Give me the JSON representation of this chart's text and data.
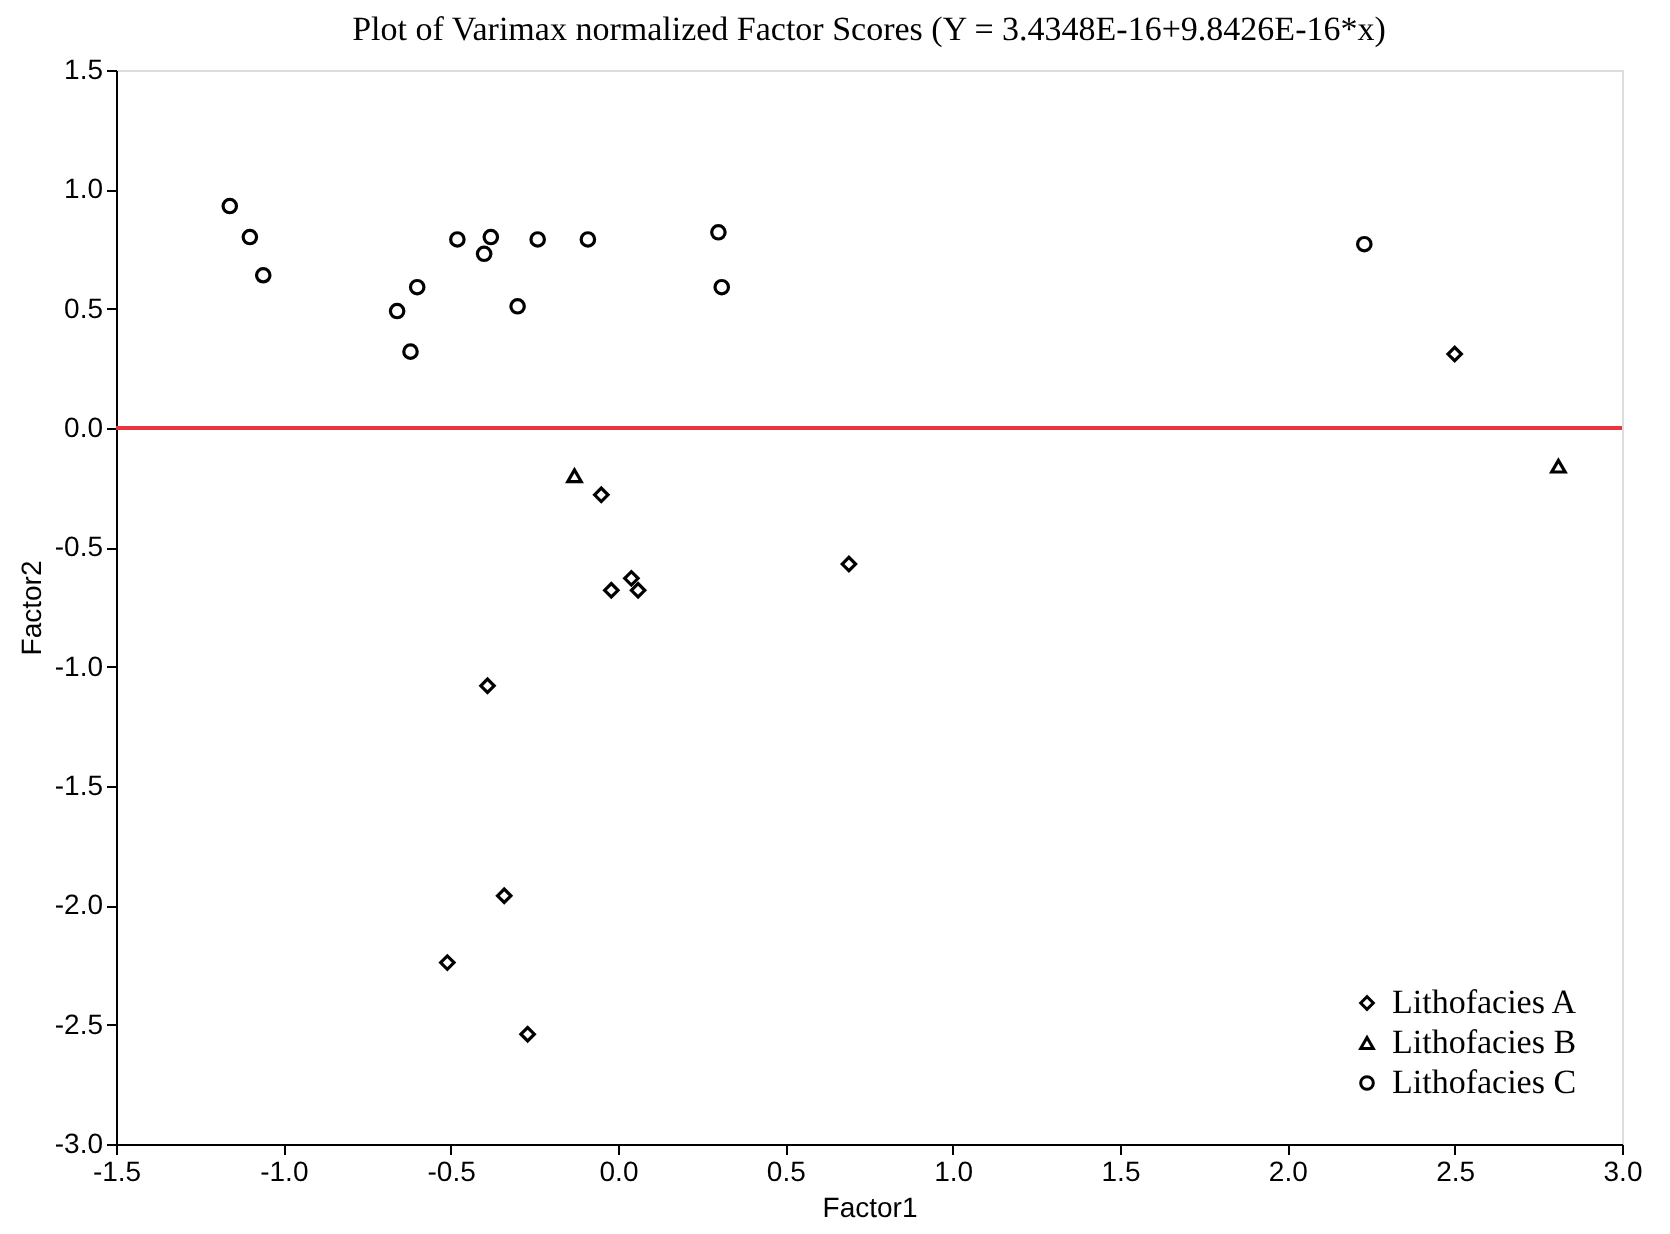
{
  "chart_data": {
    "type": "scatter",
    "title": "Plot of Varimax normalized Factor Scores (Y = 3.4348E-16+9.8426E-16*x)",
    "xlabel": "Factor1",
    "ylabel": "Factor2",
    "series": [
      {
        "name": "Lithofacies A",
        "color": "#000000",
        "marker": "diamond",
        "x": [
          -0.05,
          -0.02,
          0.04,
          0.06,
          0.69,
          2.5,
          -0.39,
          -0.34,
          -0.51,
          -0.27
        ],
        "values": [
          -0.28,
          -0.68,
          -0.63,
          -0.68,
          -0.57,
          0.31,
          -1.08,
          -1.96,
          -2.24,
          -2.54
        ]
      },
      {
        "name": "Lithofacies B",
        "color": "#000000",
        "marker": "triangle",
        "x": [
          -0.13,
          2.81
        ],
        "values": [
          -0.2,
          -0.16
        ]
      },
      {
        "name": "Lithofacies C",
        "color": "#000000",
        "marker": "circle",
        "x": [
          -1.16,
          -1.1,
          -1.06,
          -0.66,
          -0.62,
          -0.6,
          -0.48,
          -0.4,
          -0.38,
          -0.3,
          -0.24,
          -0.09,
          0.3,
          0.31,
          2.23
        ],
        "values": [
          0.93,
          0.8,
          0.64,
          0.49,
          0.32,
          0.59,
          0.79,
          0.73,
          0.8,
          0.51,
          0.79,
          0.79,
          0.82,
          0.59,
          0.77
        ]
      }
    ],
    "xlim": [
      -1.5,
      3.0
    ],
    "xticks": [
      -1.5,
      {
        "value": -1,
        "label": "-1.0"
      },
      -0.5,
      {
        "value": 0,
        "label": "0.0"
      },
      0.5,
      {
        "value": 1,
        "label": "1.0"
      },
      1.5,
      {
        "value": 2,
        "label": "2.0"
      },
      2.5,
      {
        "value": 3,
        "label": "3.0"
      }
    ],
    "ylim": [
      -3.0,
      1.5
    ],
    "yticks": [
      {
        "value": -3,
        "label": "-3.0"
      },
      -2.5,
      {
        "value": -2,
        "label": "-2.0"
      },
      -1.5,
      {
        "value": -1,
        "label": "-1.0"
      },
      -0.5,
      {
        "value": 0,
        "label": "0.0"
      },
      0.5,
      {
        "value": 1,
        "label": "1.0"
      },
      1.5
    ],
    "ref_lines": [
      {
        "axis": "y",
        "value": 0.0,
        "color": "#e8343c"
      }
    ],
    "grid": false,
    "legend": "bottom right"
  }
}
